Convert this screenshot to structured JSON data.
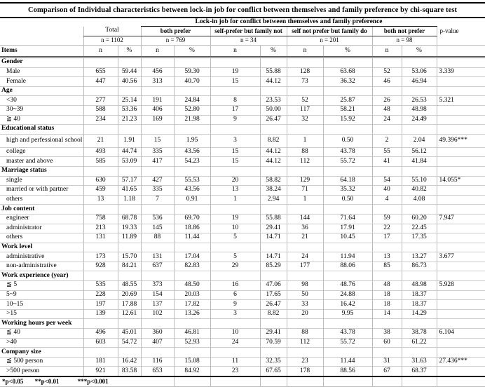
{
  "title": "Comparison of Individual characteristics between lock-in job for conflict between themselves and family preference by chi-square test",
  "header": {
    "span_title": "Lock-in job for conflict between themselves and family preference",
    "items_label": "Items",
    "n_label": "n",
    "pct_label": "%",
    "pvalue_label": "p-value",
    "groups": [
      {
        "label": "Total",
        "n": "n = 1102"
      },
      {
        "label": "both prefer",
        "n": "n = 769"
      },
      {
        "label": "self-prefer but family not",
        "n": "n = 34"
      },
      {
        "label": "self not prefer but family do",
        "n": "n = 201"
      },
      {
        "label": "both not prefer",
        "n": "n = 98"
      }
    ]
  },
  "table": {
    "rows": [
      {
        "type": "category",
        "label": "Gender"
      },
      {
        "type": "data",
        "label": "Male",
        "values": [
          "655",
          "59.44",
          "456",
          "59.30",
          "19",
          "55.88",
          "128",
          "63.68",
          "52",
          "53.06"
        ],
        "p": "3.339"
      },
      {
        "type": "data",
        "label": "Female",
        "values": [
          "447",
          "40.56",
          "313",
          "40.70",
          "15",
          "44.12",
          "73",
          "36.32",
          "46",
          "46.94"
        ],
        "p": ""
      },
      {
        "type": "category",
        "label": "Age"
      },
      {
        "type": "data",
        "label": "<30",
        "values": [
          "277",
          "25.14",
          "191",
          "24.84",
          "8",
          "23.53",
          "52",
          "25.87",
          "26",
          "26.53"
        ],
        "p": "5.321"
      },
      {
        "type": "data",
        "label": "30~39",
        "values": [
          "588",
          "53.36",
          "406",
          "52.80",
          "17",
          "50.00",
          "117",
          "58.21",
          "48",
          "48.98"
        ],
        "p": ""
      },
      {
        "type": "data",
        "label": "≧ 40",
        "values": [
          "234",
          "21.23",
          "169",
          "21.98",
          "9",
          "26.47",
          "32",
          "15.92",
          "24",
          "24.49"
        ],
        "p": ""
      },
      {
        "type": "category",
        "label": "Educational status"
      },
      {
        "type": "data",
        "tall": true,
        "label": "high and perfessional school",
        "values": [
          "21",
          "1.91",
          "15",
          "1.95",
          "3",
          "8.82",
          "1",
          "0.50",
          "2",
          "2.04"
        ],
        "p": "49.396***"
      },
      {
        "type": "data",
        "label": "college",
        "values": [
          "493",
          "44.74",
          "335",
          "43.56",
          "15",
          "44.12",
          "88",
          "43.78",
          "55",
          "56.12"
        ],
        "p": ""
      },
      {
        "type": "data",
        "label": "master and above",
        "values": [
          "585",
          "53.09",
          "417",
          "54.23",
          "15",
          "44.12",
          "112",
          "55.72",
          "41",
          "41.84"
        ],
        "p": ""
      },
      {
        "type": "category",
        "label": "Marriage status"
      },
      {
        "type": "data",
        "label": "single",
        "values": [
          "630",
          "57.17",
          "427",
          "55.53",
          "20",
          "58.82",
          "129",
          "64.18",
          "54",
          "55.10"
        ],
        "p": "14.055*"
      },
      {
        "type": "data",
        "label": "married or with partner",
        "values": [
          "459",
          "41.65",
          "335",
          "43.56",
          "13",
          "38.24",
          "71",
          "35.32",
          "40",
          "40.82"
        ],
        "p": ""
      },
      {
        "type": "data",
        "label": "others",
        "values": [
          "13",
          "1.18",
          "7",
          "0.91",
          "1",
          "2.94",
          "1",
          "0.50",
          "4",
          "4.08"
        ],
        "p": ""
      },
      {
        "type": "category",
        "label": "Job content"
      },
      {
        "type": "data",
        "label": "engineer",
        "values": [
          "758",
          "68.78",
          "536",
          "69.70",
          "19",
          "55.88",
          "144",
          "71.64",
          "59",
          "60.20"
        ],
        "p": "7.947"
      },
      {
        "type": "data",
        "label": "administrator",
        "values": [
          "213",
          "19.33",
          "145",
          "18.86",
          "10",
          "29.41",
          "36",
          "17.91",
          "22",
          "22.45"
        ],
        "p": ""
      },
      {
        "type": "data",
        "label": "others",
        "values": [
          "131",
          "11.89",
          "88",
          "11.44",
          "5",
          "14.71",
          "21",
          "10.45",
          "17",
          "17.35"
        ],
        "p": ""
      },
      {
        "type": "category",
        "label": "Work level"
      },
      {
        "type": "data",
        "label": "administrative",
        "values": [
          "173",
          "15.70",
          "131",
          "17.04",
          "5",
          "14.71",
          "24",
          "11.94",
          "13",
          "13.27"
        ],
        "p": "3.677"
      },
      {
        "type": "data",
        "label": "non-administrative",
        "values": [
          "928",
          "84.21",
          "637",
          "82.83",
          "29",
          "85.29",
          "177",
          "88.06",
          "85",
          "86.73"
        ],
        "p": ""
      },
      {
        "type": "category",
        "label": "Work experience (year)"
      },
      {
        "type": "data",
        "label": "≦ 5",
        "values": [
          "535",
          "48.55",
          "373",
          "48.50",
          "16",
          "47.06",
          "98",
          "48.76",
          "48",
          "48.98"
        ],
        "p": "5.928"
      },
      {
        "type": "data",
        "label": "5~9",
        "values": [
          "228",
          "20.69",
          "154",
          "20.03",
          "6",
          "17.65",
          "50",
          "24.88",
          "18",
          "18.37"
        ],
        "p": ""
      },
      {
        "type": "data",
        "label": "10~15",
        "values": [
          "197",
          "17.88",
          "137",
          "17.82",
          "9",
          "26.47",
          "33",
          "16.42",
          "18",
          "18.37"
        ],
        "p": ""
      },
      {
        "type": "data",
        "label": ">15",
        "values": [
          "139",
          "12.61",
          "102",
          "13.26",
          "3",
          "8.82",
          "20",
          "9.95",
          "14",
          "14.29"
        ],
        "p": ""
      },
      {
        "type": "category",
        "label": "Working hours per week"
      },
      {
        "type": "data",
        "label": "≦ 40",
        "values": [
          "496",
          "45.01",
          "360",
          "46.81",
          "10",
          "29.41",
          "88",
          "43.78",
          "38",
          "38.78"
        ],
        "p": "6.104"
      },
      {
        "type": "data",
        "label": ">40",
        "values": [
          "603",
          "54.72",
          "407",
          "52.93",
          "24",
          "70.59",
          "112",
          "55.72",
          "60",
          "61.22"
        ],
        "p": ""
      },
      {
        "type": "category",
        "label": "Company size"
      },
      {
        "type": "data",
        "label": "≦ 500 person",
        "values": [
          "181",
          "16.42",
          "116",
          "15.08",
          "11",
          "32.35",
          "23",
          "11.44",
          "31",
          "31.63"
        ],
        "p": "27.436***"
      },
      {
        "type": "data",
        "label": ">500 person",
        "values": [
          "921",
          "83.58",
          "653",
          "84.92",
          "23",
          "67.65",
          "178",
          "88.56",
          "67",
          "68.37"
        ],
        "p": ""
      }
    ]
  },
  "footnote": {
    "p05": "*p<0.05",
    "p01": "**p<0.01",
    "p001": "***p<0.001"
  },
  "colors": {
    "heavy_border": "#000000",
    "grid_border": "#bbbbbb",
    "text": "#000000",
    "background": "#ffffff"
  }
}
